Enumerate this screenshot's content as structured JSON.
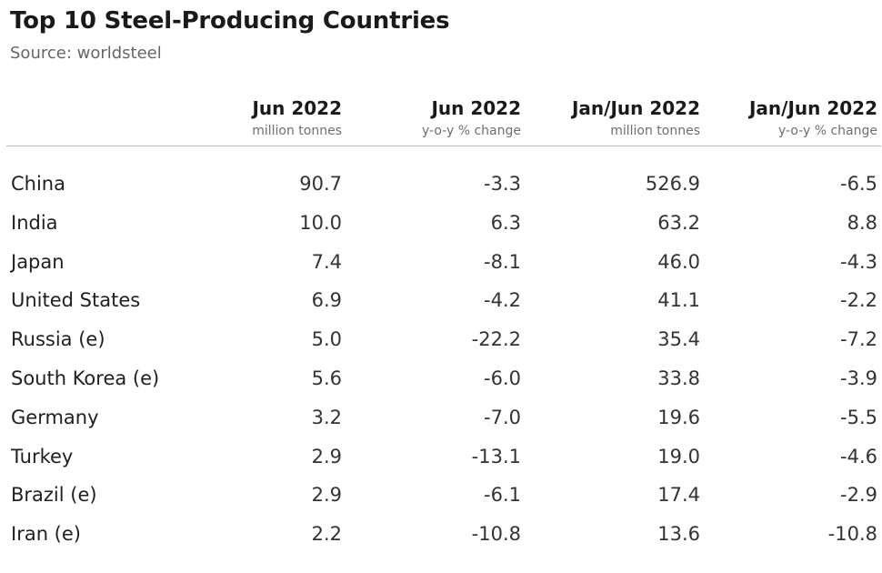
{
  "title": "Top 10 Steel-Producing Countries",
  "subtitle": "Source: worldsteel",
  "chart_data": {
    "type": "table",
    "title": "Top 10 Steel-Producing Countries",
    "subtitle": "Source: worldsteel",
    "columns": [
      {
        "label": "Jun 2022",
        "unit": "million tonnes"
      },
      {
        "label": "Jun 2022",
        "unit": "y-o-y % change"
      },
      {
        "label": "Jan/Jun 2022",
        "unit": "million tonnes"
      },
      {
        "label": "Jan/Jun 2022",
        "unit": "y-o-y % change"
      }
    ],
    "rows": [
      {
        "country": "China",
        "values": [
          "90.7",
          "-3.3",
          "526.9",
          "-6.5"
        ]
      },
      {
        "country": "India",
        "values": [
          "10.0",
          "6.3",
          "63.2",
          "8.8"
        ]
      },
      {
        "country": "Japan",
        "values": [
          "7.4",
          "-8.1",
          "46.0",
          "-4.3"
        ]
      },
      {
        "country": "United States",
        "values": [
          "6.9",
          "-4.2",
          "41.1",
          "-2.2"
        ]
      },
      {
        "country": "Russia (e)",
        "values": [
          "5.0",
          "-22.2",
          "35.4",
          "-7.2"
        ]
      },
      {
        "country": "South Korea (e)",
        "values": [
          "5.6",
          "-6.0",
          "33.8",
          "-3.9"
        ]
      },
      {
        "country": "Germany",
        "values": [
          "3.2",
          "-7.0",
          "19.6",
          "-5.5"
        ]
      },
      {
        "country": "Turkey",
        "values": [
          "2.9",
          "-13.1",
          "19.0",
          "-4.6"
        ]
      },
      {
        "country": "Brazil (e)",
        "values": [
          "2.9",
          "-6.1",
          "17.4",
          "-2.9"
        ]
      },
      {
        "country": "Iran (e)",
        "values": [
          "2.2",
          "-10.8",
          "13.6",
          "-10.8"
        ]
      }
    ]
  }
}
